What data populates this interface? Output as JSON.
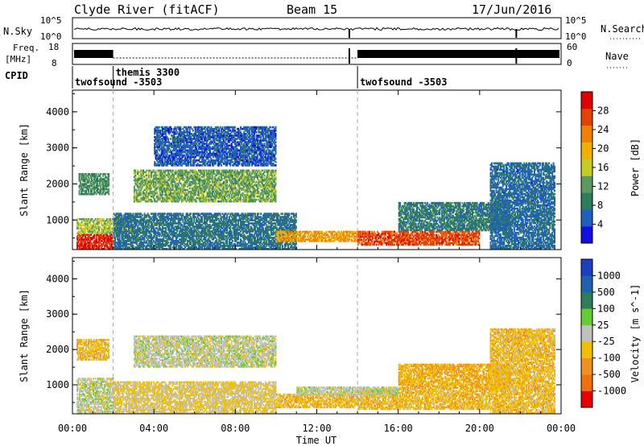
{
  "header": {
    "station": "Clyde River (fitACF)",
    "beam": "Beam 15",
    "date": "17/Jun/2016"
  },
  "top_panel": {
    "nsky_label": "N.Sky",
    "nsky_ticks": [
      "10^5",
      "10^0"
    ],
    "nsearch_label": "N.Search",
    "nsearch_ticks": [
      "10^5",
      "10^0"
    ],
    "freq_label_line1": "Freq.",
    "freq_label_line2": "[MHz]",
    "freq_ticks": [
      "18",
      "8"
    ],
    "nave_label": "Nave",
    "nave_ticks": [
      "60",
      "0"
    ],
    "cpid_label": "CPID",
    "cpid_entries": [
      {
        "label": "twofsound -3503",
        "start_hour": 0.0
      },
      {
        "label": "themis 3300",
        "start_hour": 2.0
      },
      {
        "label": "twofsound -3503",
        "start_hour": 14.0
      }
    ]
  },
  "colors": {
    "power_scale": [
      "#1010e0",
      "#1f5fbf",
      "#2e7d5a",
      "#5a9a60",
      "#c8cc20",
      "#f0b000",
      "#f08000",
      "#e84000",
      "#e00000"
    ],
    "velocity_scale": [
      "#1a3fbf",
      "#2060b0",
      "#2e7d5a",
      "#66cc33",
      "#c0c0bc",
      "#f0c000",
      "#f09020",
      "#f07010",
      "#e80000"
    ]
  },
  "chart_data": [
    {
      "type": "heatmap",
      "title": "",
      "xlabel": "Time UT",
      "ylabel": "Slant Range [km]",
      "x_tick_labels": [
        "00:00",
        "04:00",
        "08:00",
        "12:00",
        "16:00",
        "20:00",
        "00:00"
      ],
      "y_tick_labels": [
        "1000",
        "2000",
        "3000",
        "4000"
      ],
      "xlim": [
        0,
        24
      ],
      "ylim": [
        180,
        4600
      ],
      "colorbar": {
        "label": "Power [dB]",
        "ticks": [
          "4",
          "8",
          "12",
          "16",
          "20",
          "24",
          "28"
        ],
        "range": [
          0,
          30
        ]
      },
      "regions": [
        {
          "t0": 0.2,
          "t1": 2.0,
          "r0": 180,
          "r1": 620,
          "value": 27
        },
        {
          "t0": 0.2,
          "t1": 3.0,
          "r0": 620,
          "r1": 1050,
          "value": 14
        },
        {
          "t0": 0.3,
          "t1": 1.8,
          "r0": 1700,
          "r1": 2300,
          "value": 10
        },
        {
          "t0": 3.0,
          "t1": 10.0,
          "r0": 1500,
          "r1": 2400,
          "value": 12
        },
        {
          "t0": 2.0,
          "t1": 11.0,
          "r0": 180,
          "r1": 1200,
          "value": 7
        },
        {
          "t0": 10.0,
          "t1": 14.0,
          "r0": 400,
          "r1": 700,
          "value": 20
        },
        {
          "t0": 14.0,
          "t1": 20.0,
          "r0": 300,
          "r1": 700,
          "value": 25
        },
        {
          "t0": 16.0,
          "t1": 21.5,
          "r0": 700,
          "r1": 1500,
          "value": 8
        },
        {
          "t0": 20.5,
          "t1": 23.7,
          "r0": 180,
          "r1": 2600,
          "value": 6
        },
        {
          "t0": 4.0,
          "t1": 10.0,
          "r0": 2500,
          "r1": 3600,
          "value": 5
        }
      ]
    },
    {
      "type": "heatmap",
      "title": "",
      "xlabel": "Time UT",
      "ylabel": "Slant Range [km]",
      "x_tick_labels": [
        "00:00",
        "04:00",
        "08:00",
        "12:00",
        "16:00",
        "20:00",
        "00:00"
      ],
      "y_tick_labels": [
        "1000",
        "2000",
        "3000",
        "4000"
      ],
      "xlim": [
        0,
        24
      ],
      "ylim": [
        180,
        4600
      ],
      "colorbar": {
        "label": "Velocity [m s^-1]",
        "ticks": [
          "1000",
          "500",
          "100",
          "25",
          "-25",
          "-100",
          "-500",
          "-1000"
        ],
        "range": [
          -1250,
          1250
        ]
      },
      "regions": [
        {
          "t0": 0.2,
          "t1": 2.0,
          "r0": 180,
          "r1": 1200,
          "value": 0
        },
        {
          "t0": 0.2,
          "t1": 1.8,
          "r0": 1700,
          "r1": 2300,
          "value": -300
        },
        {
          "t0": 3.0,
          "t1": 10.0,
          "r0": 1500,
          "r1": 2400,
          "value": 0
        },
        {
          "t0": 2.0,
          "t1": 10.0,
          "r0": 180,
          "r1": 1100,
          "value": -150
        },
        {
          "t0": 10.0,
          "t1": 14.0,
          "r0": 350,
          "r1": 750,
          "value": -300
        },
        {
          "t0": 14.0,
          "t1": 20.5,
          "r0": 300,
          "r1": 900,
          "value": -300
        },
        {
          "t0": 16.0,
          "t1": 21.5,
          "r0": 900,
          "r1": 1600,
          "value": -400
        },
        {
          "t0": 20.5,
          "t1": 23.7,
          "r0": 180,
          "r1": 2600,
          "value": -300
        },
        {
          "t0": 11.0,
          "t1": 16.0,
          "r0": 700,
          "r1": 950,
          "value": 0
        }
      ]
    }
  ]
}
